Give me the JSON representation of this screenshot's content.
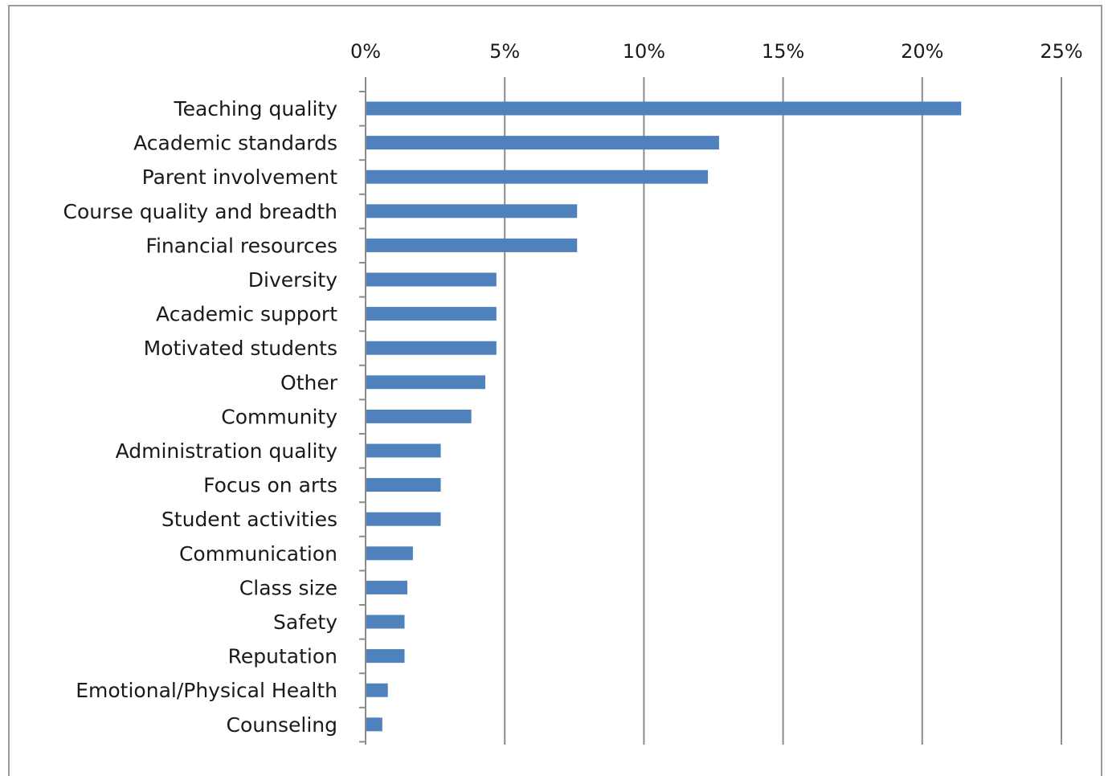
{
  "chart_data": {
    "type": "bar",
    "orientation": "horizontal",
    "title": "",
    "xlabel": "",
    "ylabel": "",
    "x_axis_position": "top",
    "xlim": [
      0,
      25
    ],
    "x_ticks": [
      0,
      5,
      10,
      15,
      20,
      25
    ],
    "x_tick_labels": [
      "0%",
      "5%",
      "10%",
      "15%",
      "20%",
      "25%"
    ],
    "grid": "vertical",
    "legend": "none",
    "categories": [
      "Teaching quality",
      "Academic standards",
      "Parent involvement",
      "Course quality and breadth",
      "Financial resources",
      "Diversity",
      "Academic support",
      "Motivated students",
      "Other",
      "Community",
      "Administration quality",
      "Focus on arts",
      "Student activities",
      "Communication",
      "Class size",
      "Safety",
      "Reputation",
      "Emotional/Physical Health",
      "Counseling"
    ],
    "values": [
      21.4,
      12.7,
      12.3,
      7.6,
      7.6,
      4.7,
      4.7,
      4.7,
      4.3,
      3.8,
      2.7,
      2.7,
      2.7,
      1.7,
      1.5,
      1.4,
      1.4,
      0.8,
      0.6
    ],
    "value_unit": "%",
    "colors": {
      "bar": "#4f81bd",
      "grid": "#8c8c8c",
      "axis": "#8c8c8c",
      "frame": "#9a9a9a",
      "text": "#1a1a1a"
    }
  }
}
